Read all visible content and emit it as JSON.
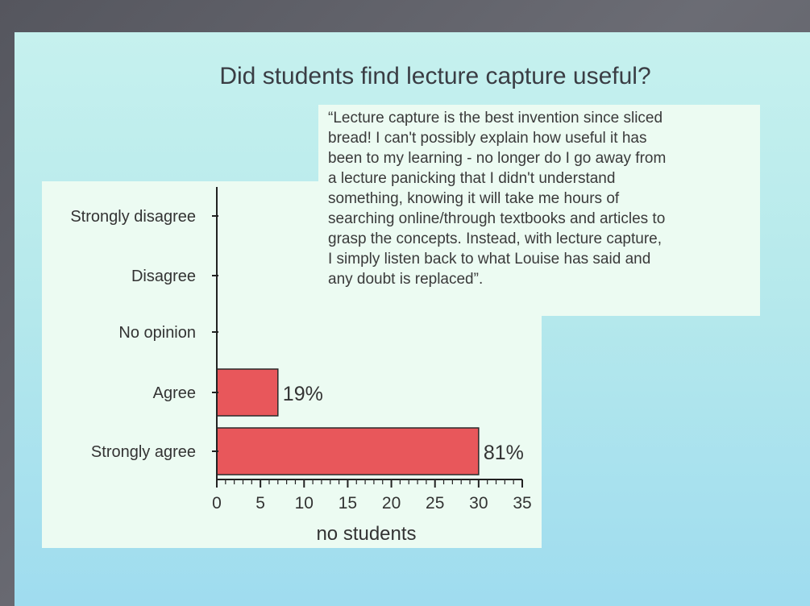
{
  "slide": {
    "title": "Did students find lecture capture useful?",
    "quote": "“Lecture capture is the best invention since sliced\nbread! I can't possibly explain how useful it has\nbeen to my learning - no longer do I go away from\na lecture panicking that I didn't understand\nsomething, knowing it will take me hours of\nsearching online/through textbooks and articles to\ngrasp the concepts. Instead, with lecture capture,\nI simply listen back to what Louise has said and\nany doubt is replaced”."
  },
  "colors": {
    "bar": "#e8575b",
    "bar_stroke": "#2a2a2a",
    "axis": "#222222",
    "text": "#333333"
  },
  "chart_data": {
    "type": "bar",
    "orientation": "horizontal",
    "categories": [
      "Strongly disagree",
      "Disagree",
      "No opinion",
      "Agree",
      "Strongly agree"
    ],
    "values": [
      0,
      0,
      0,
      7,
      30
    ],
    "data_labels": [
      "",
      "",
      "",
      "19%",
      "81%"
    ],
    "xlabel": "no students",
    "ylabel": "",
    "xlim": [
      0,
      35
    ],
    "xticks": [
      0,
      5,
      10,
      15,
      20,
      25,
      30,
      35
    ],
    "grid": false,
    "legend": "none"
  }
}
